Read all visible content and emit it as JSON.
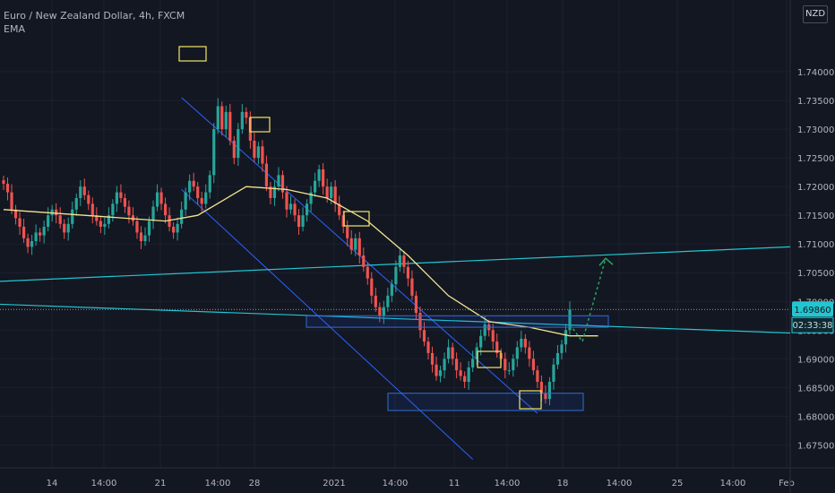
{
  "header": {
    "symbol_line": "Euro / New Zealand Dollar, 4h, FXCM",
    "indicator": "EMA"
  },
  "currency_badge": "NZD",
  "price_labels": {
    "current": "1.69860",
    "countdown": "02:33:38"
  },
  "colors": {
    "background": "#131722",
    "up": "#26a69a",
    "down": "#ef5350",
    "ema": "#f2e58e",
    "channel": "#2962ff",
    "trendline": "#22c6d0",
    "box_yellow": "#f5e663",
    "box_blue": "#2f6fd6",
    "forecast": "#26a65b",
    "axis_text": "#b2b5be",
    "grid": "#1c2030"
  },
  "chart_data": {
    "type": "candlestick",
    "title": "Euro / New Zealand Dollar, 4h, FXCM",
    "indicator": "EMA",
    "ylim": [
      1.671,
      1.7525
    ],
    "y_ticks": [
      "1.67500",
      "1.68000",
      "1.68500",
      "1.69000",
      "1.69500",
      "1.70000",
      "1.70500",
      "1.71000",
      "1.71500",
      "1.72000",
      "1.72500",
      "1.73000",
      "1.73500",
      "1.74000"
    ],
    "x_ticks": [
      "14",
      "14:00",
      "21",
      "14:00",
      "28",
      "2021",
      "14:00",
      "11",
      "14:00",
      "18",
      "14:00",
      "25",
      "14:00",
      "Feb"
    ],
    "current_price": 1.6986,
    "grid": true,
    "ohlc_closes": [
      1.7205,
      1.719,
      1.716,
      1.7145,
      1.713,
      1.711,
      1.7095,
      1.7105,
      1.712,
      1.7115,
      1.713,
      1.715,
      1.716,
      1.715,
      1.7135,
      1.712,
      1.7135,
      1.716,
      1.718,
      1.72,
      1.7185,
      1.717,
      1.715,
      1.714,
      1.713,
      1.7135,
      1.715,
      1.717,
      1.719,
      1.718,
      1.7165,
      1.715,
      1.714,
      1.712,
      1.7105,
      1.7115,
      1.714,
      1.7165,
      1.719,
      1.717,
      1.715,
      1.713,
      1.712,
      1.7135,
      1.716,
      1.719,
      1.721,
      1.72,
      1.718,
      1.717,
      1.719,
      1.722,
      1.73,
      1.734,
      1.73,
      1.733,
      1.728,
      1.725,
      1.73,
      1.733,
      1.732,
      1.728,
      1.725,
      1.727,
      1.724,
      1.72,
      1.718,
      1.72,
      1.722,
      1.719,
      1.716,
      1.717,
      1.715,
      1.713,
      1.715,
      1.717,
      1.719,
      1.721,
      1.723,
      1.72,
      1.718,
      1.72,
      1.717,
      1.715,
      1.713,
      1.711,
      1.709,
      1.711,
      1.708,
      1.706,
      1.704,
      1.701,
      1.699,
      1.6975,
      1.699,
      1.701,
      1.703,
      1.706,
      1.708,
      1.706,
      1.704,
      1.701,
      1.698,
      1.695,
      1.693,
      1.691,
      1.689,
      1.687,
      1.688,
      1.69,
      1.692,
      1.69,
      1.688,
      1.687,
      1.686,
      1.6885,
      1.69,
      1.692,
      1.694,
      1.696,
      1.695,
      1.693,
      1.691,
      1.69,
      1.688,
      1.688,
      1.69,
      1.692,
      1.6935,
      1.692,
      1.69,
      1.688,
      1.686,
      1.684,
      1.683,
      1.686,
      1.689,
      1.691,
      1.6925,
      1.695,
      1.6986
    ],
    "ema_points": [
      [
        0,
        1.716
      ],
      [
        20,
        1.715
      ],
      [
        40,
        1.714
      ],
      [
        48,
        1.715
      ],
      [
        60,
        1.72
      ],
      [
        70,
        1.7195
      ],
      [
        80,
        1.718
      ],
      [
        90,
        1.714
      ],
      [
        100,
        1.708
      ],
      [
        110,
        1.701
      ],
      [
        120,
        1.6965
      ],
      [
        130,
        1.6955
      ],
      [
        140,
        1.694
      ],
      [
        147,
        1.694
      ]
    ],
    "annotations": {
      "descending_channel": "two parallel lines from the top-left high down to the lower right",
      "trendline_upper_rising": [
        1.7035,
        1.7095
      ],
      "trendline_falling": [
        1.6995,
        1.6945
      ],
      "resistance_box": [
        1.6955,
        1.6975
      ],
      "support_box": [
        1.681,
        1.684
      ],
      "forecast_path": [
        1.696,
        1.693,
        1.7075
      ]
    }
  }
}
